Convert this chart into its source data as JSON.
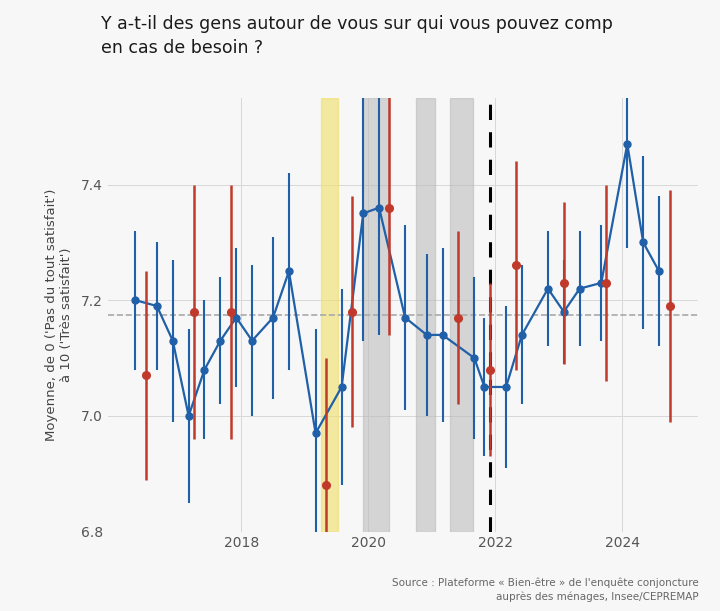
{
  "title": "Y a-t-il des gens autour de vous sur qui vous pouvez comp\nen cas de besoin ?",
  "ylabel": "Moyenne, de 0 ('Pas du tout satisfait')\nà 10 ('Très satisfait')",
  "source": "Source : Plateforme « Bien-être » de l'enquête conjoncture\nauprès des ménages, Insee/CEPREMAP",
  "ylim": [
    6.8,
    7.55
  ],
  "mean_line": 7.175,
  "background_color": "#f7f7f7",
  "blue_color": "#2060a8",
  "red_color": "#c0392b",
  "dashed_line_x": 2021.92,
  "yellow_band": [
    2019.25,
    2019.52
  ],
  "gray_band1": [
    2019.92,
    2020.32
  ],
  "gray_band2": [
    2020.75,
    2021.05
  ],
  "gray_band3": [
    2021.28,
    2021.65
  ],
  "blue_points": [
    [
      2016.33,
      7.2
    ],
    [
      2016.67,
      7.19
    ],
    [
      2016.92,
      7.13
    ],
    [
      2017.17,
      7.0
    ],
    [
      2017.42,
      7.08
    ],
    [
      2017.67,
      7.13
    ],
    [
      2017.92,
      7.17
    ],
    [
      2018.17,
      7.13
    ],
    [
      2018.5,
      7.17
    ],
    [
      2018.75,
      7.25
    ],
    [
      2019.17,
      6.97
    ],
    [
      2019.58,
      7.05
    ],
    [
      2019.92,
      7.35
    ],
    [
      2020.17,
      7.36
    ],
    [
      2020.58,
      7.17
    ],
    [
      2020.92,
      7.14
    ],
    [
      2021.17,
      7.14
    ],
    [
      2021.67,
      7.1
    ],
    [
      2021.83,
      7.05
    ],
    [
      2022.17,
      7.05
    ],
    [
      2022.42,
      7.14
    ],
    [
      2022.83,
      7.22
    ],
    [
      2023.08,
      7.18
    ],
    [
      2023.33,
      7.22
    ],
    [
      2023.67,
      7.23
    ],
    [
      2024.08,
      7.47
    ],
    [
      2024.33,
      7.3
    ],
    [
      2024.58,
      7.25
    ]
  ],
  "blue_errors": [
    0.12,
    0.11,
    0.14,
    0.15,
    0.12,
    0.11,
    0.12,
    0.13,
    0.14,
    0.17,
    0.18,
    0.17,
    0.22,
    0.22,
    0.16,
    0.14,
    0.15,
    0.14,
    0.12,
    0.14,
    0.12,
    0.1,
    0.09,
    0.1,
    0.1,
    0.18,
    0.15,
    0.13
  ],
  "red_points": [
    [
      2016.5,
      7.07
    ],
    [
      2017.25,
      7.18
    ],
    [
      2017.83,
      7.18
    ],
    [
      2019.33,
      6.88
    ],
    [
      2019.75,
      7.18
    ],
    [
      2020.33,
      7.36
    ],
    [
      2021.42,
      7.17
    ],
    [
      2021.92,
      7.08
    ],
    [
      2022.33,
      7.26
    ],
    [
      2023.08,
      7.23
    ],
    [
      2023.75,
      7.23
    ],
    [
      2024.75,
      7.19
    ]
  ],
  "red_errors": [
    0.18,
    0.22,
    0.22,
    0.22,
    0.2,
    0.22,
    0.15,
    0.15,
    0.18,
    0.14,
    0.17,
    0.2
  ]
}
